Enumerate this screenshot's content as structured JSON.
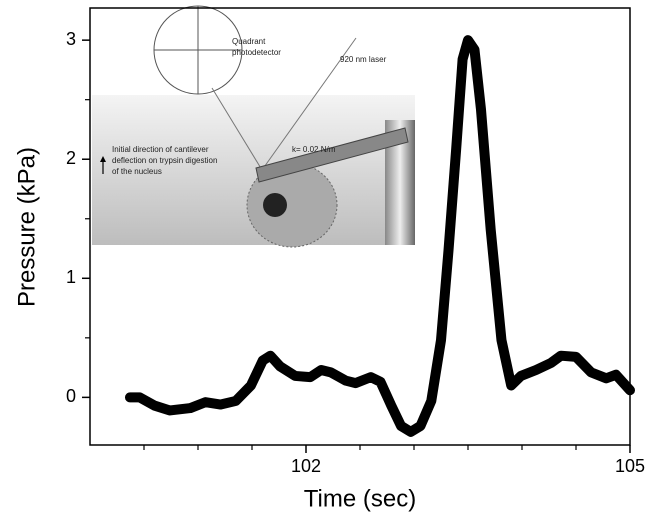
{
  "chart_data": {
    "type": "line",
    "x_label": "Time (sec)",
    "y_label": "Pressure (kPa)",
    "xlim": [
      100,
      105
    ],
    "xticks": [
      102,
      105
    ],
    "xminorticks": [
      100.5,
      101,
      101.5,
      102.5,
      103,
      103.5,
      104,
      104.5
    ],
    "ylim": [
      -0.4,
      3.27
    ],
    "yticks": [
      0,
      1,
      2,
      3
    ],
    "yminorticks": [
      -0.5,
      0.5,
      1.5,
      2.5
    ],
    "color": "#000000",
    "x": [
      100.37,
      100.46,
      100.6,
      100.74,
      100.93,
      101.07,
      101.21,
      101.35,
      101.49,
      101.6,
      101.67,
      101.76,
      101.9,
      102.04,
      102.14,
      102.23,
      102.37,
      102.46,
      102.6,
      102.69,
      102.79,
      102.88,
      102.97,
      103.06,
      103.16,
      103.25,
      103.32,
      103.39,
      103.45,
      103.5,
      103.56,
      103.62,
      103.71,
      103.81,
      103.9,
      103.99,
      104.13,
      104.27,
      104.36,
      104.5,
      104.64,
      104.78,
      104.87,
      105.0
    ],
    "values": [
      0.0,
      0.0,
      -0.07,
      -0.11,
      -0.09,
      -0.04,
      -0.06,
      -0.03,
      0.1,
      0.31,
      0.35,
      0.26,
      0.18,
      0.17,
      0.23,
      0.21,
      0.14,
      0.12,
      0.17,
      0.13,
      -0.07,
      -0.24,
      -0.29,
      -0.24,
      -0.03,
      0.48,
      1.24,
      2.08,
      2.84,
      3.0,
      2.92,
      2.42,
      1.41,
      0.48,
      0.1,
      0.18,
      0.23,
      0.29,
      0.35,
      0.34,
      0.21,
      0.16,
      0.19,
      0.06
    ],
    "inset_labels": [
      [
        "Quadrant",
        "photodetector"
      ],
      [
        "920 nm laser"
      ],
      [
        "k= 0.02 N/m"
      ],
      [
        "Initial direction of cantilever",
        "deflection on trypsin digestion",
        "of the nucleus"
      ]
    ]
  }
}
